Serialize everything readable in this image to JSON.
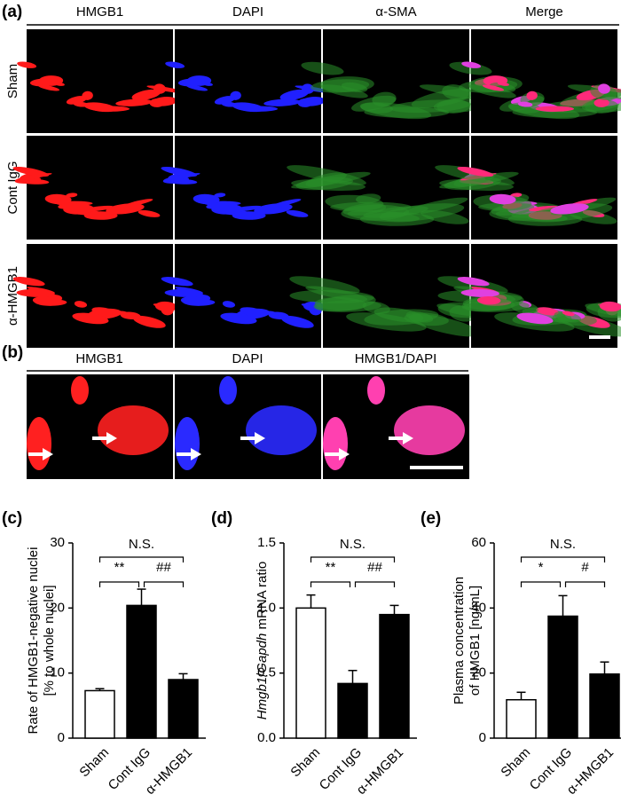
{
  "panel_a": {
    "label": "(a)",
    "columns": [
      "HMGB1",
      "DAPI",
      "α-SMA",
      "Merge"
    ],
    "rows": [
      "Sham",
      "Cont IgG",
      "α-HMGB1"
    ]
  },
  "panel_b": {
    "label": "(b)",
    "columns": [
      "HMGB1",
      "DAPI",
      "HMGB1/DAPI"
    ]
  },
  "chart_data": [
    {
      "panel": "(c)",
      "type": "bar",
      "categories": [
        "Sham",
        "Cont IgG",
        "α-HMGB1"
      ],
      "values": [
        7.3,
        20.4,
        9.0
      ],
      "errors": [
        0.3,
        2.5,
        0.9
      ],
      "colors": [
        "#ffffff",
        "#000000",
        "#000000"
      ],
      "ylabel": [
        "Rate of HMGB1-negative nuclei",
        "[% to whole nuclei]"
      ],
      "ylim": [
        0,
        30
      ],
      "yticks": [
        0,
        10,
        20,
        30
      ],
      "annotations": [
        "N.S.",
        "**",
        "##"
      ]
    },
    {
      "panel": "(d)",
      "type": "bar",
      "categories": [
        "Sham",
        "Cont IgG",
        "α-HMGB1"
      ],
      "values": [
        1.0,
        0.42,
        0.95
      ],
      "errors": [
        0.1,
        0.1,
        0.07
      ],
      "colors": [
        "#ffffff",
        "#000000",
        "#000000"
      ],
      "ylabel": [
        "Hmgb1",
        "/",
        "Gapdh",
        " mRNA ratio"
      ],
      "ylim": [
        0,
        1.5
      ],
      "yticks": [
        {
          "value": 0,
          "label": "0.0"
        },
        {
          "value": 0.5,
          "label": "0.5"
        },
        {
          "value": 1,
          "label": "1.0"
        },
        {
          "value": 1.5,
          "label": "1.5"
        }
      ],
      "annotations": [
        "N.S.",
        "**",
        "##"
      ]
    },
    {
      "panel": "(e)",
      "type": "bar",
      "categories": [
        "Sham",
        "Cont IgG",
        "α-HMGB1"
      ],
      "values": [
        11.8,
        37.5,
        19.7
      ],
      "errors": [
        2.3,
        6.3,
        3.7
      ],
      "colors": [
        "#ffffff",
        "#000000",
        "#000000"
      ],
      "ylabel": [
        "Plasma concentration",
        "of HMGB1 [ng/mL]"
      ],
      "ylim": [
        0,
        60
      ],
      "yticks": [
        0,
        20,
        40,
        60
      ],
      "annotations": [
        "N.S.",
        "*",
        "#"
      ]
    }
  ]
}
